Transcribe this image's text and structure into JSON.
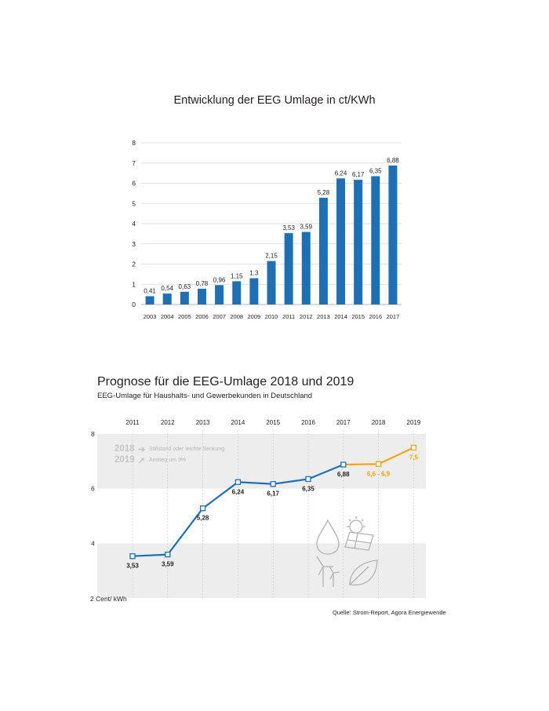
{
  "chart_data": [
    {
      "type": "bar",
      "title": "Entwicklung der EEG Umlage in ct/KWh",
      "categories": [
        "2003",
        "2004",
        "2005",
        "2006",
        "2007",
        "2008",
        "2009",
        "2010",
        "2011",
        "2012",
        "2013",
        "2014",
        "2015",
        "2016",
        "2017"
      ],
      "values": [
        0.41,
        0.54,
        0.63,
        0.78,
        0.96,
        1.15,
        1.3,
        2.15,
        3.53,
        3.59,
        5.28,
        6.24,
        6.17,
        6.35,
        6.88
      ],
      "data_labels": [
        "0,41",
        "0,54",
        "0,63",
        "0,78",
        "0,96",
        "1,15",
        "1,3",
        "2,15",
        "3,53",
        "3,59",
        "5,28",
        "6,24",
        "6,17",
        "6,35",
        "6,88"
      ],
      "y_ticks": [
        "0",
        "1",
        "2",
        "3",
        "4",
        "5",
        "6",
        "7",
        "8"
      ],
      "ylim": [
        0,
        8
      ],
      "grid": true,
      "bar_color": "#1f6fb5"
    },
    {
      "type": "line",
      "title": "Prognose für die EEG-Umlage 2018 und 2019",
      "subtitle": "EEG-Umlage für Haushalts- und Gewerbekunden in Deutschland",
      "categories": [
        "2011",
        "2012",
        "2013",
        "2014",
        "2015",
        "2016",
        "2017",
        "2018",
        "2019"
      ],
      "series": [
        {
          "values": [
            3.53,
            3.59,
            5.28,
            6.24,
            6.17,
            6.35,
            6.88,
            null,
            null
          ],
          "color": "#1f6fb5"
        },
        {
          "values": [
            null,
            null,
            null,
            null,
            null,
            null,
            6.88,
            6.9,
            7.5
          ],
          "color": "#f5a31a"
        }
      ],
      "data_labels": [
        "3,53",
        "3,59",
        "5,28",
        "6,24",
        "6,17",
        "6,35",
        "6,88",
        "6,6 - 6,9",
        "7,5"
      ],
      "y_ticks": [
        "2 Cent/ kWh",
        "4",
        "6",
        "8"
      ],
      "ylim": [
        2,
        8
      ],
      "legend": [
        {
          "year": "2018",
          "arrow": "➔",
          "text": "Stillstand oder leichte Senkung"
        },
        {
          "year": "2019",
          "arrow": "➚",
          "text": "Anstieg um 9%"
        }
      ],
      "icons": [
        "water-drop-icon",
        "solar-panel-icon",
        "wind-turbine-icon",
        "leaf-icon"
      ],
      "source": "Quelle: Strom-Report, Agora Energiewende"
    }
  ]
}
